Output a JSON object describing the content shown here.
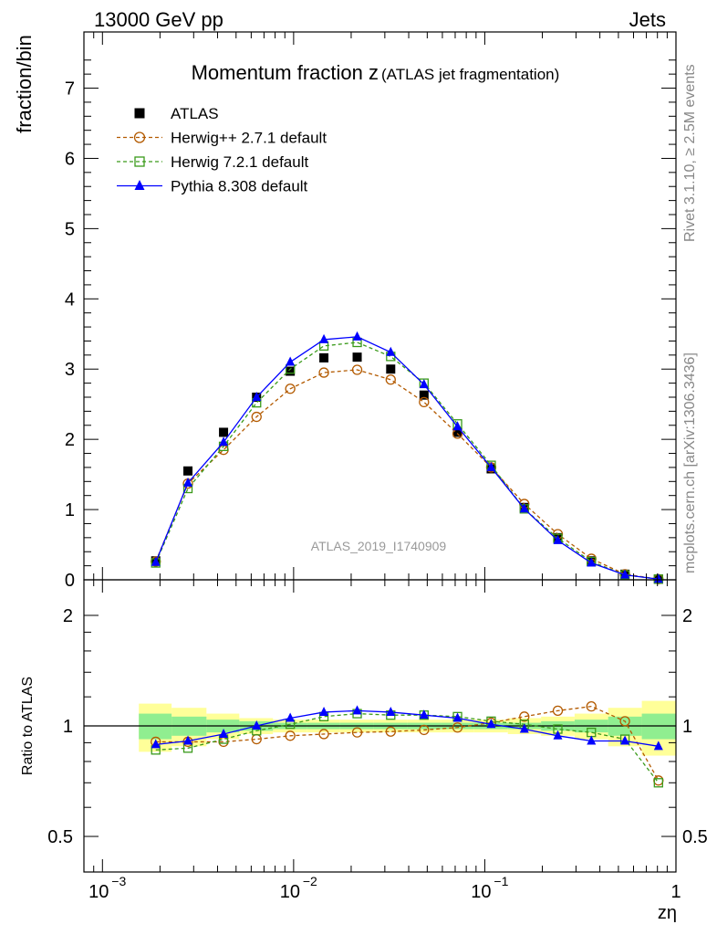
{
  "header": {
    "left": "13000 GeV pp",
    "right": "Jets"
  },
  "side_labels": {
    "rivet": "Rivet 3.1.10, ≥ 2.5M events",
    "mcplots": "mcplots.cern.ch [arXiv:1306.3436]"
  },
  "chart_data": [
    {
      "type": "scatter",
      "panel": "main",
      "title": "Momentum fraction z",
      "title_sub": "(ATLAS jet fragmentation)",
      "ylabel": "fraction/bin",
      "xlabel": "zη",
      "xscale": "log",
      "xlim": [
        0.0008,
        1
      ],
      "ylim": [
        0,
        7.8
      ],
      "yticks": [
        0,
        1,
        2,
        3,
        4,
        5,
        6,
        7
      ],
      "watermark": "ATLAS_2019_I1740909",
      "x": [
        0.0019,
        0.0028,
        0.0043,
        0.0064,
        0.0096,
        0.0144,
        0.0215,
        0.0322,
        0.0481,
        0.072,
        0.108,
        0.161,
        0.241,
        0.361,
        0.541,
        0.81
      ],
      "legend_position": "top-left",
      "series": [
        {
          "name": "ATLAS",
          "color": "#000000",
          "marker": "filled-square",
          "line": "none",
          "values": [
            0.27,
            1.55,
            2.1,
            2.6,
            2.97,
            3.16,
            3.17,
            3.0,
            2.63,
            2.1,
            1.58,
            1.03,
            0.6,
            0.27,
            0.08,
            0.01
          ]
        },
        {
          "name": "Herwig++ 2.7.1 default",
          "color": "#b35a00",
          "marker": "open-circle",
          "line": "dashed",
          "values": [
            0.26,
            1.37,
            1.85,
            2.32,
            2.72,
            2.95,
            2.99,
            2.85,
            2.53,
            2.08,
            1.6,
            1.08,
            0.65,
            0.3,
            0.08,
            0.01
          ]
        },
        {
          "name": "Herwig 7.2.1 default",
          "color": "#3a9a1a",
          "marker": "open-square",
          "line": "dashed",
          "values": [
            0.24,
            1.3,
            1.9,
            2.52,
            3.0,
            3.33,
            3.38,
            3.18,
            2.8,
            2.22,
            1.63,
            1.01,
            0.59,
            0.26,
            0.07,
            0.01
          ]
        },
        {
          "name": "Pythia 8.308 default",
          "color": "#0000ff",
          "marker": "filled-triangle",
          "line": "solid",
          "values": [
            0.25,
            1.38,
            1.96,
            2.6,
            3.1,
            3.42,
            3.46,
            3.24,
            2.78,
            2.18,
            1.6,
            1.01,
            0.56,
            0.24,
            0.07,
            0.01
          ]
        }
      ]
    },
    {
      "type": "scatter",
      "panel": "ratio",
      "ylabel": "Ratio to ATLAS",
      "xlabel": "zη",
      "xscale": "log",
      "yscale": "log",
      "ylim": [
        0.4,
        2.5
      ],
      "yticks": [
        0.5,
        1,
        2
      ],
      "xticks": [
        {
          "value": 0.001,
          "base": "10",
          "exp": "−3"
        },
        {
          "value": 0.01,
          "base": "10",
          "exp": "−2"
        },
        {
          "value": 0.1,
          "base": "10",
          "exp": "−1"
        },
        {
          "value": 1,
          "base": "1",
          "exp": ""
        }
      ],
      "x": [
        0.0019,
        0.0028,
        0.0043,
        0.0064,
        0.0096,
        0.0144,
        0.0215,
        0.0322,
        0.0481,
        0.072,
        0.108,
        0.161,
        0.241,
        0.361,
        0.541,
        0.81
      ],
      "band_x_edges": [
        0.00155,
        0.0023,
        0.0035,
        0.0052,
        0.0078,
        0.0117,
        0.0175,
        0.0263,
        0.0394,
        0.059,
        0.088,
        0.132,
        0.197,
        0.295,
        0.442,
        0.663,
        1.0
      ],
      "band_inner": [
        0.08,
        0.06,
        0.04,
        0.03,
        0.02,
        0.02,
        0.02,
        0.02,
        0.02,
        0.02,
        0.02,
        0.02,
        0.03,
        0.04,
        0.06,
        0.08
      ],
      "band_outer": [
        0.15,
        0.12,
        0.08,
        0.05,
        0.04,
        0.04,
        0.04,
        0.04,
        0.04,
        0.04,
        0.04,
        0.05,
        0.06,
        0.08,
        0.12,
        0.17
      ],
      "band_colors": {
        "inner": "#90ee90",
        "outer": "#ffff99"
      },
      "series": [
        {
          "name": "Herwig++ 2.7.1 default",
          "color": "#b35a00",
          "marker": "open-circle",
          "line": "dashed",
          "values": [
            0.905,
            0.905,
            0.905,
            0.92,
            0.94,
            0.95,
            0.96,
            0.965,
            0.975,
            0.99,
            1.02,
            1.06,
            1.1,
            1.13,
            1.03,
            0.71
          ]
        },
        {
          "name": "Herwig 7.2.1 default",
          "color": "#3a9a1a",
          "marker": "open-square",
          "line": "dashed",
          "values": [
            0.86,
            0.87,
            0.92,
            0.97,
            1.01,
            1.06,
            1.08,
            1.07,
            1.07,
            1.06,
            1.03,
            1.01,
            0.98,
            0.96,
            0.92,
            0.7
          ]
        },
        {
          "name": "Pythia 8.308 default",
          "color": "#0000ff",
          "marker": "filled-triangle",
          "line": "solid",
          "values": [
            0.89,
            0.91,
            0.95,
            1.0,
            1.05,
            1.09,
            1.1,
            1.09,
            1.07,
            1.05,
            1.01,
            0.98,
            0.94,
            0.91,
            0.91,
            0.88
          ]
        }
      ]
    }
  ]
}
